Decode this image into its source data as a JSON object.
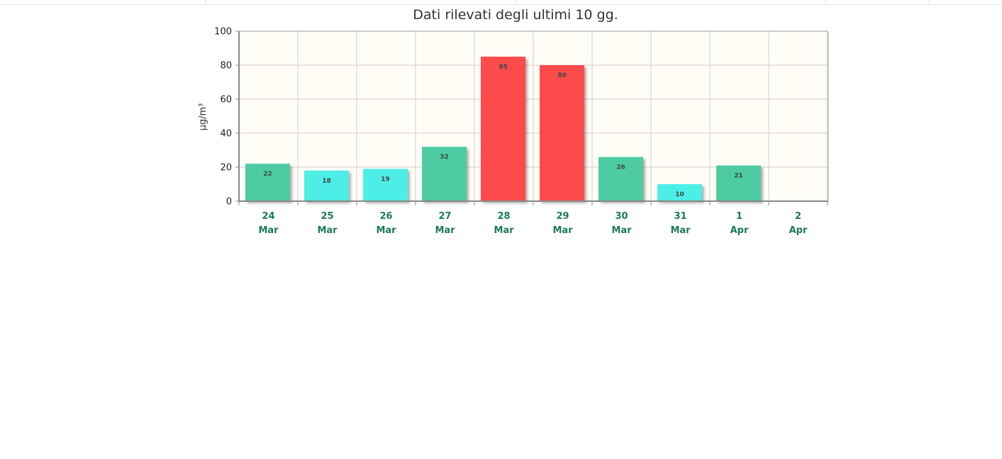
{
  "chart_data": {
    "type": "bar",
    "title": "Dati rilevati degli ultimi 10 gg.",
    "xlabel": "",
    "ylabel": "µg/m³",
    "ylim": [
      0,
      100
    ],
    "yticks": [
      0,
      20,
      40,
      60,
      80,
      100
    ],
    "grid": true,
    "categories": [
      {
        "day": "24",
        "month": "Mar"
      },
      {
        "day": "25",
        "month": "Mar"
      },
      {
        "day": "26",
        "month": "Mar"
      },
      {
        "day": "27",
        "month": "Mar"
      },
      {
        "day": "28",
        "month": "Mar"
      },
      {
        "day": "29",
        "month": "Mar"
      },
      {
        "day": "30",
        "month": "Mar"
      },
      {
        "day": "31",
        "month": "Mar"
      },
      {
        "day": "1",
        "month": "Apr"
      },
      {
        "day": "2",
        "month": "Apr"
      }
    ],
    "values": [
      22,
      18,
      19,
      32,
      85,
      80,
      26,
      10,
      21,
      null
    ],
    "data_labels": [
      "22",
      "18",
      "19",
      "32",
      "85",
      "80",
      "26",
      "10",
      "21",
      ""
    ],
    "bar_colors": [
      "#4ecca3",
      "#4eeee6",
      "#4eeee6",
      "#4ecca3",
      "#ff4c4c",
      "#ff4c4c",
      "#4ecca3",
      "#4eeee6",
      "#4ecca3",
      ""
    ]
  },
  "colors": {
    "plot_background": "#fffdf6",
    "grid": "#d0d0d0",
    "axis": "#888888",
    "x_tick_text": "#1a7a56"
  }
}
